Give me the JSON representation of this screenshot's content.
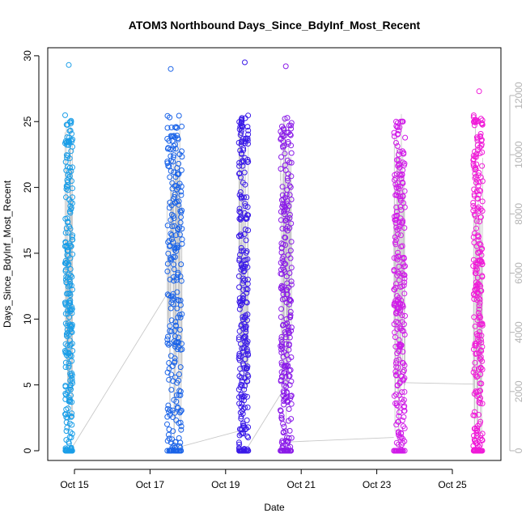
{
  "chart_data": {
    "type": "scatter",
    "title": "ATOM3 Northbound Days_Since_BdyInf_Most_Recent",
    "xlabel": "Date",
    "ylabel": "Days_Since_BdyInf_Most_Recent",
    "x_axis_type": "date",
    "x_tick_labels": [
      "Oct 15",
      "Oct 17",
      "Oct 19",
      "Oct 21",
      "Oct 23",
      "Oct 25"
    ],
    "ylim": [
      0,
      30
    ],
    "y_ticks": [
      0,
      5,
      10,
      15,
      20,
      25,
      30
    ],
    "y2_ticks": [
      0,
      2000,
      4000,
      6000,
      8000,
      10000,
      12000
    ],
    "y2_color": "#b3b3b3",
    "series": [
      {
        "date": "Oct 14",
        "x_range_days": [
          14.75,
          14.95
        ],
        "y_range": [
          0,
          29.3
        ],
        "color": "#1a9ee8"
      },
      {
        "date": "Oct 17",
        "x_range_days": [
          17.45,
          17.85
        ],
        "y_range": [
          0,
          29.0
        ],
        "color": "#1a63e8"
      },
      {
        "date": "Oct 19",
        "x_range_days": [
          19.35,
          19.6
        ],
        "y_range": [
          0,
          29.5
        ],
        "color": "#3a1ae8"
      },
      {
        "date": "Oct 20",
        "x_range_days": [
          20.45,
          20.75
        ],
        "y_range": [
          0,
          29.2
        ],
        "color": "#8a1ae8"
      },
      {
        "date": "Oct 23",
        "x_range_days": [
          23.45,
          23.75
        ],
        "y_range": [
          0,
          25.0
        ],
        "color": "#d01ae8"
      },
      {
        "date": "Oct 25",
        "x_range_days": [
          25.55,
          25.8
        ],
        "y_range": [
          0,
          27.3
        ],
        "color": "#f01ad8"
      }
    ],
    "connector_line_color": "#c8c8c8",
    "legend": "none",
    "grid": false
  }
}
